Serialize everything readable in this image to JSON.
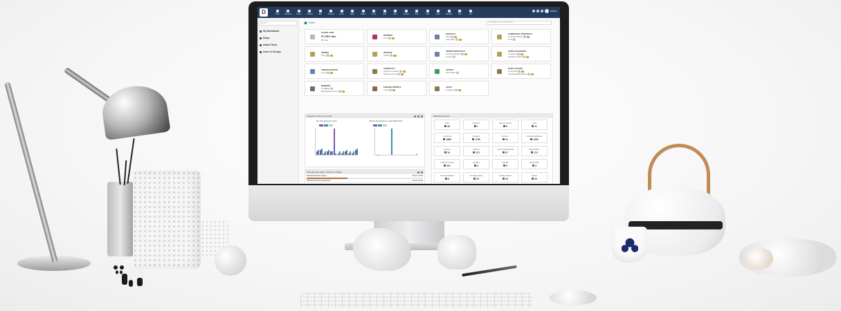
{
  "topbar": {
    "logo": "D",
    "menus": [
      "Home",
      "Members",
      "Third-p.",
      "Products",
      "MRP",
      "Projects",
      "Comm.",
      "Billing",
      "Banks",
      "Accnt.",
      "HRM",
      "Docu.",
      "Agenda",
      "Ticket",
      "Tools",
      "Intern.",
      "Web/Site",
      "Print",
      "Pos"
    ],
    "user": "dolibarr"
  },
  "sidebar": {
    "search_placeholder": "Search",
    "items": [
      "My Dashboard",
      "Setup",
      "Admin Tools",
      "Users & Groups"
    ]
  },
  "breadcrumb": "Home",
  "main_search_placeholder": "Add widget to your dashboard",
  "boxes": [
    {
      "title": "Global view",
      "big": "57.05% late",
      "small": "251 late",
      "color": "#b7b7b7"
    },
    {
      "title": "Members",
      "lines": [
        {
          "label": "To do",
          "badges": [
            "0",
            "1"
          ]
        }
      ],
      "color": "#a8385b"
    },
    {
      "title": "Projects",
      "lines": [
        {
          "label": "Open",
          "badges": [
            "1",
            "6"
          ]
        },
        {
          "label": "Open tasks",
          "badges": [
            "9",
            "1"
          ]
        }
      ],
      "color": "#6d7fb0"
    },
    {
      "title": "Commercial proposals",
      "lines": [
        {
          "label": "To accept (offered)",
          "badges": [
            "32",
            "2"
          ]
        },
        {
          "label": "To bill",
          "badges": [
            "4"
          ]
        }
      ],
      "color": "#b1a05b"
    },
    {
      "title": "Orders",
      "lines": [
        {
          "label": "Open",
          "badges": [
            "38",
            "3"
          ]
        }
      ],
      "color": "#b1a05b"
    },
    {
      "title": "Invoices",
      "lines": [
        {
          "label": "Unpaid",
          "badges": [
            "20",
            "12"
          ]
        }
      ],
      "color": "#b1a05b"
    },
    {
      "title": "Vendor proposals",
      "lines": [
        {
          "label": "To accept (offered)",
          "badges": [
            "8",
            "1"
          ]
        },
        {
          "label": "To close",
          "badges": [
            "1"
          ]
        }
      ],
      "color": "#6d7fb0"
    },
    {
      "title": "Purchase orders",
      "lines": [
        {
          "label": "To approve",
          "badges": [
            "3",
            "2"
          ]
        },
        {
          "label": "Awaiting reception",
          "badges": [
            "2",
            "2"
          ]
        }
      ],
      "color": "#b1a05b"
    },
    {
      "title": "Vendor invoices",
      "lines": [
        {
          "label": "To pay",
          "badges": [
            "3",
            "2"
          ]
        }
      ],
      "color": "#6d7fb0"
    },
    {
      "title": "Contracts",
      "lines": [
        {
          "label": "Services to activate",
          "badges": [
            "5",
            "1"
          ]
        },
        {
          "label": "Services running",
          "badges": [
            "3",
            "4"
          ]
        }
      ],
      "color": "#8a7a44"
    },
    {
      "title": "Tickets",
      "lines": [
        {
          "label": "Open tickets",
          "badges": [
            "5"
          ]
        }
      ],
      "color": "#3d9a5c"
    },
    {
      "title": "Bank account",
      "lines": [
        {
          "label": "To reconcile",
          "badges": [
            "3",
            "2"
          ]
        },
        {
          "label": "Checks awaiting deposit",
          "badges": [
            "8",
            "2"
          ]
        }
      ],
      "color": "#8a7a44"
    },
    {
      "title": "Members",
      "lines": [
        {
          "label": "To validate",
          "badges": [
            "3"
          ]
        },
        {
          "label": "Subscription to renew",
          "badges": [
            "10",
            "3"
          ]
        }
      ],
      "color": "#6d6d6d"
    },
    {
      "title": "Expense reports",
      "lines": [
        {
          "label": "To pay",
          "badges": [
            "3",
            "3"
          ]
        }
      ],
      "color": "#8a6a3d"
    },
    {
      "title": "Leave",
      "lines": [
        {
          "label": "To approve",
          "badges": [
            "2",
            "1"
          ]
        }
      ],
      "color": "#8a7a44"
    }
  ],
  "invoice_widget": {
    "title": "Customer invoices per month",
    "chart1_title": "Nb. of invoices per month",
    "chart2_title": "Amount of invoices per month (Net of tax)"
  },
  "chart_data": [
    {
      "type": "bar",
      "title": "Nb. of invoices per month",
      "categories": [
        "1",
        "2",
        "3",
        "4",
        "5",
        "6",
        "7",
        "8",
        "9",
        "10",
        "11",
        "12"
      ],
      "series": [
        {
          "name": "",
          "color": "#7d57a7",
          "values": [
            2,
            3,
            1,
            2,
            2,
            16,
            1,
            1,
            2,
            1,
            1,
            3
          ]
        },
        {
          "name": "",
          "color": "#3c8fa7",
          "values": [
            3,
            4,
            2,
            3,
            2,
            1,
            2,
            2,
            3,
            2,
            2,
            4
          ]
        }
      ]
    },
    {
      "type": "bar",
      "title": "Amount of invoices per month (Net of tax)",
      "categories": [
        "1",
        "2",
        "3",
        "4",
        "5",
        "6",
        "7",
        "8",
        "9",
        "10",
        "11",
        "12"
      ],
      "series": [
        {
          "name": "",
          "color": "#7d57a7",
          "values": [
            0,
            0,
            0,
            0,
            0,
            0,
            0,
            0,
            0,
            0,
            0,
            0
          ]
        },
        {
          "name": "",
          "color": "#3c8fa7",
          "values": [
            300,
            0,
            0,
            0,
            28000,
            0,
            0,
            0,
            0,
            0,
            0,
            400
          ]
        }
      ]
    }
  ],
  "stats_widget": {
    "title": "Statistics Overview",
    "items": [
      {
        "label": "Users",
        "value": "28"
      },
      {
        "label": "Members",
        "value": "7"
      },
      {
        "label": "Expense reports",
        "value": "8"
      },
      {
        "label": "Leave",
        "value": "11"
      },
      {
        "label": "Customers",
        "value": "1885"
      },
      {
        "label": "Prospects",
        "value": "1706"
      },
      {
        "label": "Vendors",
        "value": "41"
      },
      {
        "label": "Contacts/Addresses",
        "value": "1306"
      },
      {
        "label": "Services",
        "value": "16"
      },
      {
        "label": "Projects",
        "value": "172"
      },
      {
        "label": "Commercial proposals",
        "value": "37"
      },
      {
        "label": "Sales Orders",
        "value": "174"
      },
      {
        "label": "Customer invoices",
        "value": "201"
      },
      {
        "label": "Contracts",
        "value": "4"
      },
      {
        "label": "Contracts",
        "value": "8"
      },
      {
        "label": "Interventions",
        "value": "4"
      },
      {
        "label": "Vendor proposals",
        "value": "4"
      },
      {
        "label": "Purchase orders",
        "value": "15"
      },
      {
        "label": "Vendor invoices",
        "value": "33"
      },
      {
        "label": "Tickets",
        "value": "20"
      }
    ]
  },
  "tasks_widget": {
    "title": "Currently open tasks - what I'm in charge",
    "tasks": [
      {
        "label": "PROJ1910-0001 Analyze",
        "hours": "03:30 / 10:00",
        "progress": 0.35
      },
      {
        "label": "PROJ1910-0001 Specification",
        "hours": "00:00 / 05:00",
        "progress": 0.0
      }
    ]
  }
}
